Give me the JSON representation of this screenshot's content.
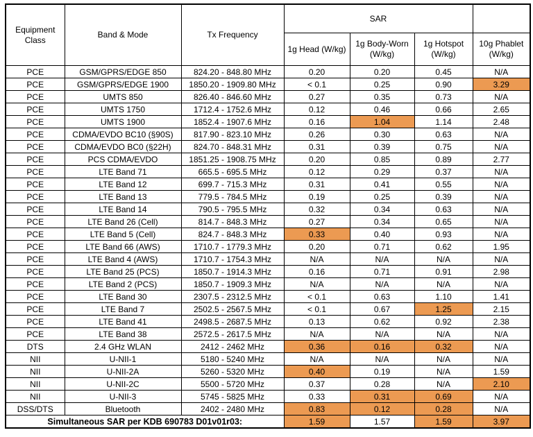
{
  "table": {
    "highlight_color": "#EC9A52",
    "headers": {
      "equipment_class": "Equipment Class",
      "band_mode": "Band & Mode",
      "tx_frequency": "Tx Frequency",
      "sar_group": "SAR",
      "sub": [
        "1g Head (W/kg)",
        "1g Body-Worn (W/kg)",
        "1g Hotspot (W/kg)",
        "10g Phablet (W/kg)"
      ]
    },
    "rows": [
      {
        "class": "PCE",
        "band": "GSM/GPRS/EDGE 850",
        "freq": "824.20 - 848.80 MHz",
        "values": [
          "0.20",
          "0.20",
          "0.45",
          "N/A"
        ],
        "hl": [
          false,
          false,
          false,
          false
        ]
      },
      {
        "class": "PCE",
        "band": "GSM/GPRS/EDGE 1900",
        "freq": "1850.20 - 1909.80 MHz",
        "values": [
          "< 0.1",
          "0.25",
          "0.90",
          "3.29"
        ],
        "hl": [
          false,
          false,
          false,
          true
        ]
      },
      {
        "class": "PCE",
        "band": "UMTS 850",
        "freq": "826.40 - 846.60 MHz",
        "values": [
          "0.27",
          "0.35",
          "0.73",
          "N/A"
        ],
        "hl": [
          false,
          false,
          false,
          false
        ]
      },
      {
        "class": "PCE",
        "band": "UMTS 1750",
        "freq": "1712.4 - 1752.6 MHz",
        "values": [
          "0.12",
          "0.46",
          "0.66",
          "2.65"
        ],
        "hl": [
          false,
          false,
          false,
          false
        ]
      },
      {
        "class": "PCE",
        "band": "UMTS 1900",
        "freq": "1852.4 - 1907.6 MHz",
        "values": [
          "0.16",
          "1.04",
          "1.14",
          "2.48"
        ],
        "hl": [
          false,
          true,
          false,
          false
        ]
      },
      {
        "class": "PCE",
        "band": "CDMA/EVDO BC10 (§90S)",
        "freq": "817.90 - 823.10 MHz",
        "values": [
          "0.26",
          "0.30",
          "0.63",
          "N/A"
        ],
        "hl": [
          false,
          false,
          false,
          false
        ]
      },
      {
        "class": "PCE",
        "band": "CDMA/EVDO BC0 (§22H)",
        "freq": "824.70 - 848.31 MHz",
        "values": [
          "0.31",
          "0.39",
          "0.75",
          "N/A"
        ],
        "hl": [
          false,
          false,
          false,
          false
        ]
      },
      {
        "class": "PCE",
        "band": "PCS CDMA/EVDO",
        "freq": "1851.25 - 1908.75 MHz",
        "values": [
          "0.20",
          "0.85",
          "0.89",
          "2.77"
        ],
        "hl": [
          false,
          false,
          false,
          false
        ]
      },
      {
        "class": "PCE",
        "band": "LTE Band 71",
        "freq": "665.5 - 695.5 MHz",
        "values": [
          "0.12",
          "0.29",
          "0.37",
          "N/A"
        ],
        "hl": [
          false,
          false,
          false,
          false
        ]
      },
      {
        "class": "PCE",
        "band": "LTE Band 12",
        "freq": "699.7 - 715.3 MHz",
        "values": [
          "0.31",
          "0.41",
          "0.55",
          "N/A"
        ],
        "hl": [
          false,
          false,
          false,
          false
        ]
      },
      {
        "class": "PCE",
        "band": "LTE Band 13",
        "freq": "779.5 - 784.5 MHz",
        "values": [
          "0.19",
          "0.25",
          "0.39",
          "N/A"
        ],
        "hl": [
          false,
          false,
          false,
          false
        ]
      },
      {
        "class": "PCE",
        "band": "LTE Band 14",
        "freq": "790.5 - 795.5 MHz",
        "values": [
          "0.32",
          "0.34",
          "0.63",
          "N/A"
        ],
        "hl": [
          false,
          false,
          false,
          false
        ]
      },
      {
        "class": "PCE",
        "band": "LTE Band 26 (Cell)",
        "freq": "814.7 - 848.3 MHz",
        "values": [
          "0.27",
          "0.34",
          "0.65",
          "N/A"
        ],
        "hl": [
          false,
          false,
          false,
          false
        ]
      },
      {
        "class": "PCE",
        "band": "LTE Band 5 (Cell)",
        "freq": "824.7 - 848.3 MHz",
        "values": [
          "0.33",
          "0.40",
          "0.93",
          "N/A"
        ],
        "hl": [
          true,
          false,
          false,
          false
        ]
      },
      {
        "class": "PCE",
        "band": "LTE Band 66 (AWS)",
        "freq": "1710.7 - 1779.3 MHz",
        "values": [
          "0.20",
          "0.71",
          "0.62",
          "1.95"
        ],
        "hl": [
          false,
          false,
          false,
          false
        ]
      },
      {
        "class": "PCE",
        "band": "LTE Band 4 (AWS)",
        "freq": "1710.7 - 1754.3 MHz",
        "values": [
          "N/A",
          "N/A",
          "N/A",
          "N/A"
        ],
        "hl": [
          false,
          false,
          false,
          false
        ]
      },
      {
        "class": "PCE",
        "band": "LTE Band 25 (PCS)",
        "freq": "1850.7 - 1914.3 MHz",
        "values": [
          "0.16",
          "0.71",
          "0.91",
          "2.98"
        ],
        "hl": [
          false,
          false,
          false,
          false
        ]
      },
      {
        "class": "PCE",
        "band": "LTE Band 2 (PCS)",
        "freq": "1850.7 - 1909.3 MHz",
        "values": [
          "N/A",
          "N/A",
          "N/A",
          "N/A"
        ],
        "hl": [
          false,
          false,
          false,
          false
        ]
      },
      {
        "class": "PCE",
        "band": "LTE Band 30",
        "freq": "2307.5 - 2312.5 MHz",
        "values": [
          "< 0.1",
          "0.63",
          "1.10",
          "1.41"
        ],
        "hl": [
          false,
          false,
          false,
          false
        ]
      },
      {
        "class": "PCE",
        "band": "LTE Band 7",
        "freq": "2502.5 - 2567.5 MHz",
        "values": [
          "< 0.1",
          "0.67",
          "1.25",
          "2.15"
        ],
        "hl": [
          false,
          false,
          true,
          false
        ]
      },
      {
        "class": "PCE",
        "band": "LTE Band 41",
        "freq": "2498.5 - 2687.5 MHz",
        "values": [
          "0.13",
          "0.62",
          "0.92",
          "2.38"
        ],
        "hl": [
          false,
          false,
          false,
          false
        ]
      },
      {
        "class": "PCE",
        "band": "LTE Band 38",
        "freq": "2572.5 - 2617.5 MHz",
        "values": [
          "N/A",
          "N/A",
          "N/A",
          "N/A"
        ],
        "hl": [
          false,
          false,
          false,
          false
        ]
      },
      {
        "class": "DTS",
        "band": "2.4 GHz WLAN",
        "freq": "2412 - 2462 MHz",
        "values": [
          "0.36",
          "0.16",
          "0.32",
          "N/A"
        ],
        "hl": [
          true,
          true,
          true,
          false
        ]
      },
      {
        "class": "NII",
        "band": "U-NII-1",
        "freq": "5180 - 5240 MHz",
        "values": [
          "N/A",
          "N/A",
          "N/A",
          "N/A"
        ],
        "hl": [
          false,
          false,
          false,
          false
        ]
      },
      {
        "class": "NII",
        "band": "U-NII-2A",
        "freq": "5260 - 5320 MHz",
        "values": [
          "0.40",
          "0.19",
          "N/A",
          "1.59"
        ],
        "hl": [
          true,
          false,
          false,
          false
        ]
      },
      {
        "class": "NII",
        "band": "U-NII-2C",
        "freq": "5500 - 5720 MHz",
        "values": [
          "0.37",
          "0.28",
          "N/A",
          "2.10"
        ],
        "hl": [
          false,
          false,
          false,
          true
        ]
      },
      {
        "class": "NII",
        "band": "U-NII-3",
        "freq": "5745 - 5825 MHz",
        "values": [
          "0.33",
          "0.31",
          "0.69",
          "N/A"
        ],
        "hl": [
          false,
          true,
          true,
          false
        ]
      },
      {
        "class": "DSS/DTS",
        "band": "Bluetooth",
        "freq": "2402 - 2480 MHz",
        "values": [
          "0.83",
          "0.12",
          "0.28",
          "N/A"
        ],
        "hl": [
          true,
          true,
          true,
          false
        ]
      }
    ],
    "footer": {
      "label": "Simultaneous SAR per KDB 690783 D01v01r03:",
      "values": [
        "1.59",
        "1.57",
        "1.59",
        "3.97"
      ],
      "hl": [
        true,
        false,
        true,
        true
      ]
    }
  }
}
